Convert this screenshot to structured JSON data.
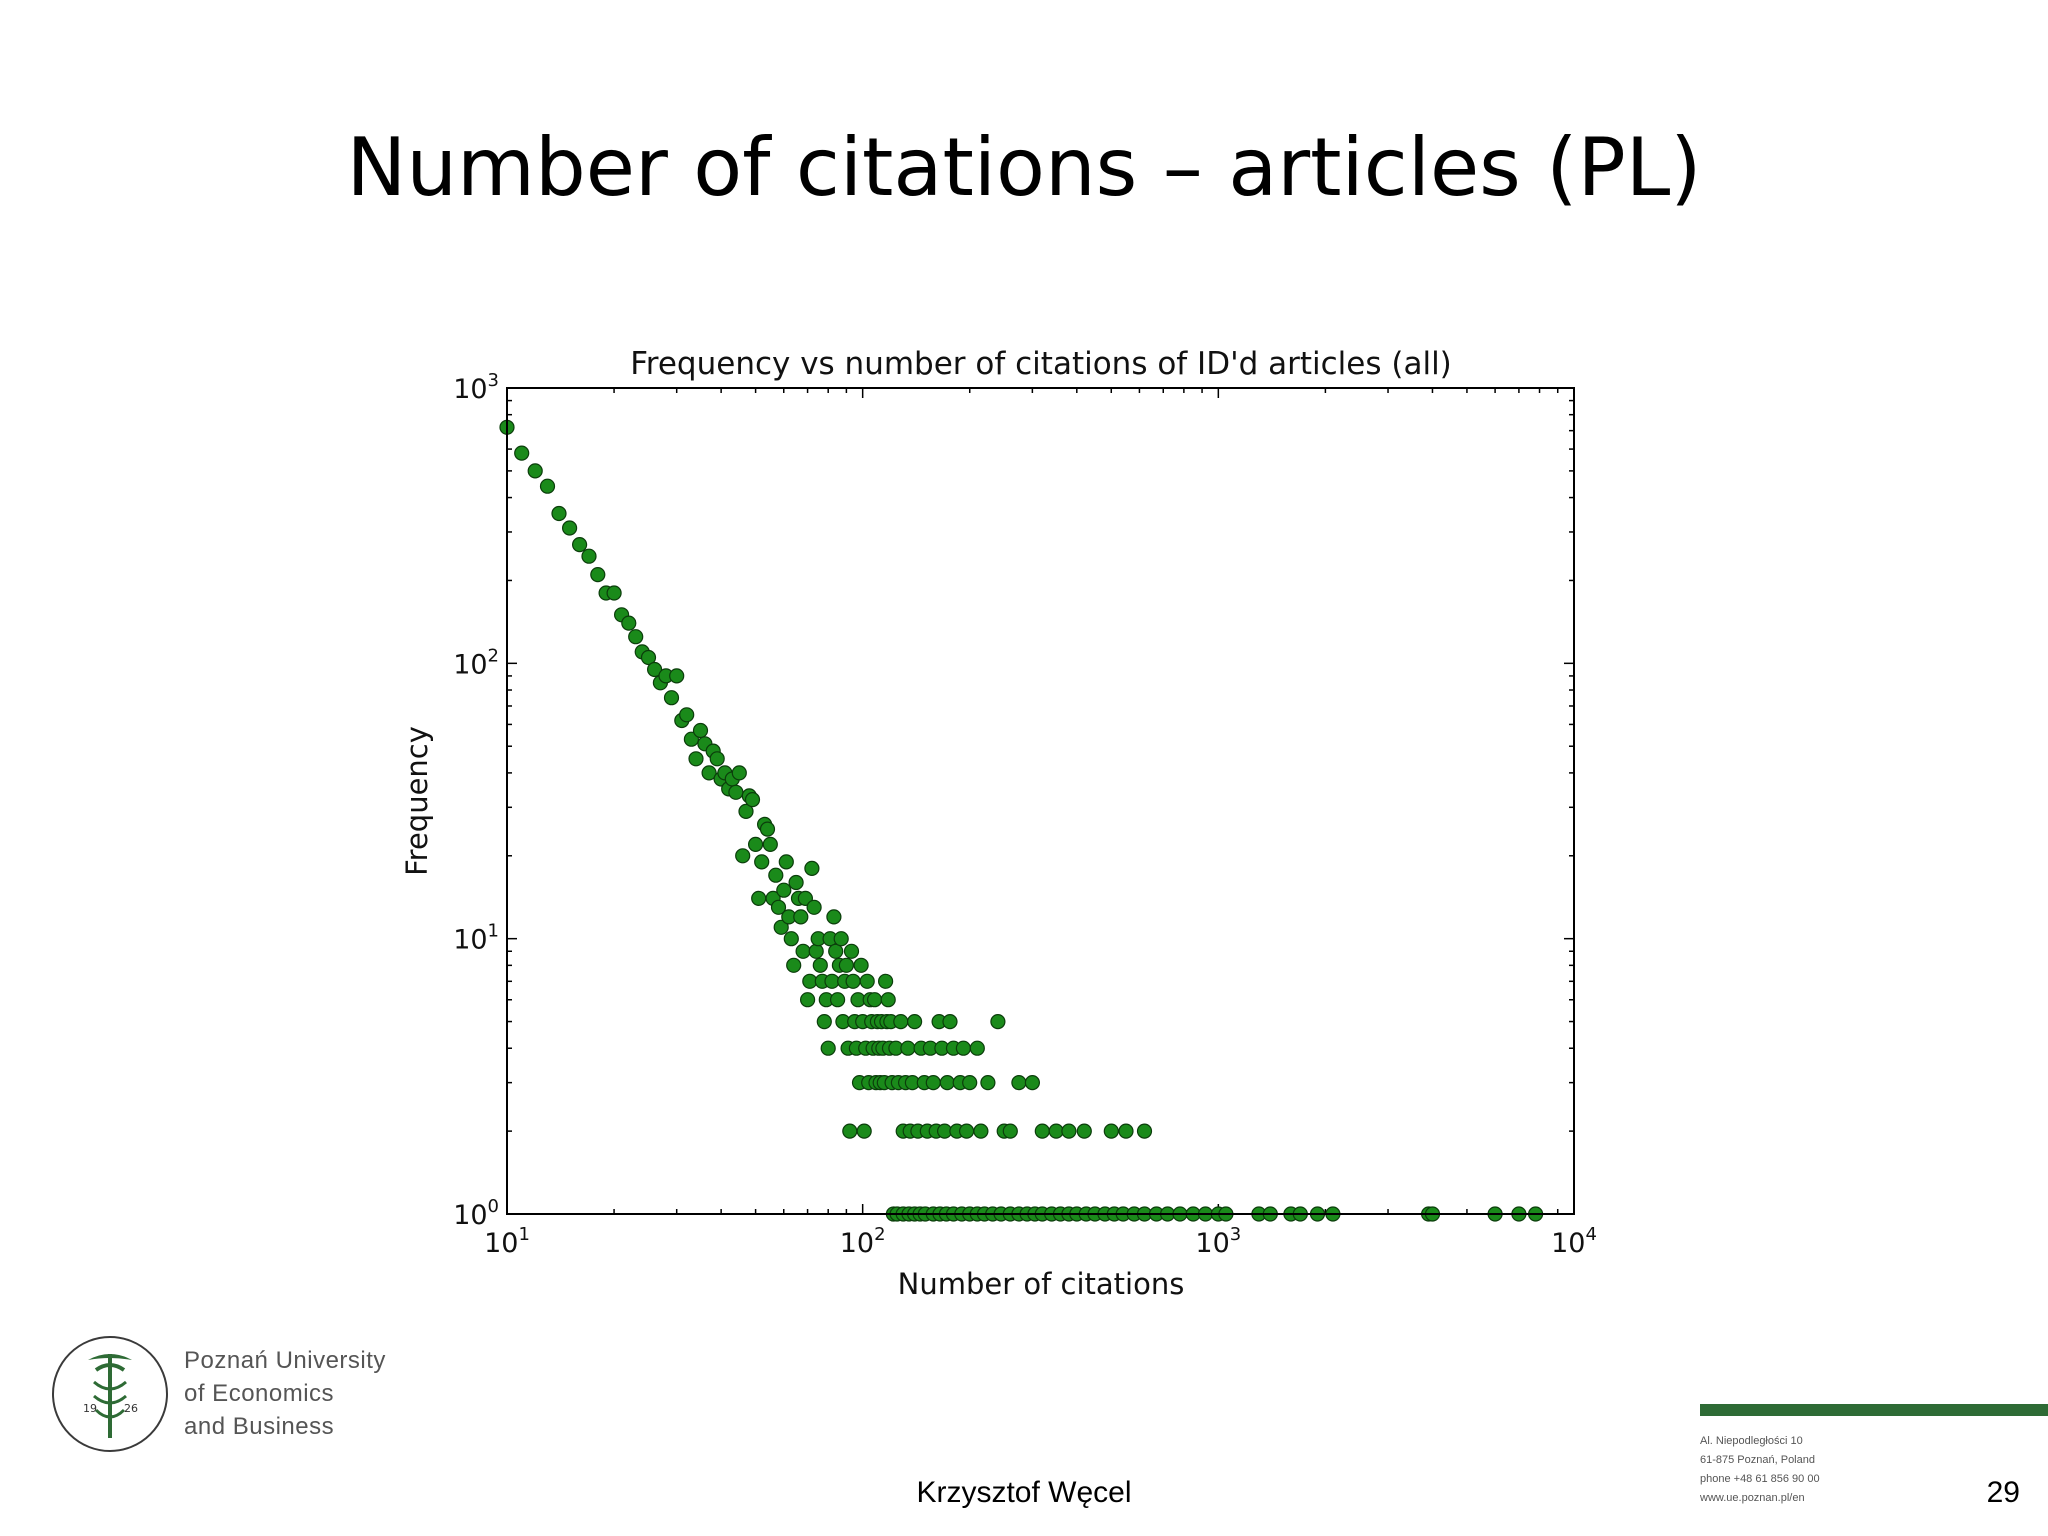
{
  "slide": {
    "title": "Number of citations – articles (PL)",
    "author": "Krzysztof Węcel",
    "page_number": "29"
  },
  "logo": {
    "line1": "Poznań University",
    "line2": "of Economics",
    "line3": "and Business",
    "seal_year_left": "19",
    "seal_year_right": "26"
  },
  "address": {
    "line1": "Al. Niepodległości 10",
    "line2": "61-875 Poznań, Poland",
    "line3": "phone +48 61 856 90 00",
    "line4": "www.ue.poznan.pl/en"
  },
  "colors": {
    "marker": "#1a8a1a",
    "marker_edge": "#0b3d0b",
    "accent": "#2e6b35"
  },
  "chart_data": {
    "type": "scatter",
    "title": "Frequency vs number of citations of ID'd articles (all)",
    "xlabel": "Number of citations",
    "ylabel": "Frequency",
    "xscale": "log",
    "yscale": "log",
    "xlim": [
      10,
      10000
    ],
    "ylim": [
      1,
      1000
    ],
    "xticks": [
      "10^1",
      "10^2",
      "10^3",
      "10^4"
    ],
    "yticks": [
      "10^0",
      "10^1",
      "10^2",
      "10^3"
    ],
    "grid": false,
    "series": [
      {
        "points": [
          [
            10,
            720
          ],
          [
            11,
            580
          ],
          [
            12,
            500
          ],
          [
            13,
            440
          ],
          [
            14,
            350
          ],
          [
            15,
            310
          ],
          [
            16,
            270
          ],
          [
            17,
            245
          ],
          [
            18,
            210
          ],
          [
            19,
            180
          ],
          [
            20,
            180
          ],
          [
            21,
            150
          ],
          [
            22,
            140
          ],
          [
            23,
            125
          ],
          [
            24,
            110
          ],
          [
            25,
            105
          ],
          [
            26,
            95
          ],
          [
            27,
            85
          ],
          [
            28,
            90
          ],
          [
            29,
            75
          ],
          [
            30,
            90
          ],
          [
            31,
            62
          ],
          [
            32,
            65
          ],
          [
            33,
            53
          ],
          [
            34,
            45
          ],
          [
            35,
            57
          ],
          [
            36,
            51
          ],
          [
            37,
            40
          ],
          [
            38,
            48
          ],
          [
            39,
            45
          ],
          [
            40,
            38
          ],
          [
            41,
            40
          ],
          [
            42,
            35
          ],
          [
            43,
            38
          ],
          [
            44,
            34
          ],
          [
            45,
            40
          ],
          [
            46,
            20
          ],
          [
            47,
            29
          ],
          [
            48,
            33
          ],
          [
            49,
            32
          ],
          [
            50,
            22
          ],
          [
            51,
            14
          ],
          [
            52,
            19
          ],
          [
            53,
            26
          ],
          [
            54,
            25
          ],
          [
            55,
            22
          ],
          [
            56,
            14
          ],
          [
            57,
            17
          ],
          [
            58,
            13
          ],
          [
            59,
            11
          ],
          [
            60,
            15
          ],
          [
            61,
            19
          ],
          [
            62,
            12
          ],
          [
            63,
            10
          ],
          [
            64,
            8
          ],
          [
            65,
            16
          ],
          [
            66,
            14
          ],
          [
            67,
            12
          ],
          [
            68,
            9
          ],
          [
            69,
            14
          ],
          [
            70,
            6
          ],
          [
            71,
            7
          ],
          [
            72,
            18
          ],
          [
            73,
            13
          ],
          [
            74,
            9
          ],
          [
            75,
            10
          ],
          [
            76,
            8
          ],
          [
            77,
            7
          ],
          [
            78,
            5
          ],
          [
            79,
            6
          ],
          [
            80,
            4
          ],
          [
            81,
            10
          ],
          [
            82,
            7
          ],
          [
            83,
            12
          ],
          [
            84,
            9
          ],
          [
            85,
            6
          ],
          [
            86,
            8
          ],
          [
            87,
            10
          ],
          [
            88,
            5
          ],
          [
            89,
            7
          ],
          [
            90,
            8
          ],
          [
            91,
            4
          ],
          [
            92,
            2
          ],
          [
            93,
            9
          ],
          [
            94,
            7
          ],
          [
            95,
            5
          ],
          [
            96,
            4
          ],
          [
            97,
            6
          ],
          [
            98,
            3
          ],
          [
            99,
            8
          ],
          [
            100,
            5
          ],
          [
            101,
            2
          ],
          [
            102,
            4
          ],
          [
            103,
            7
          ],
          [
            104,
            3
          ],
          [
            105,
            6
          ],
          [
            106,
            5
          ],
          [
            107,
            4
          ],
          [
            108,
            6
          ],
          [
            109,
            3
          ],
          [
            110,
            5
          ],
          [
            111,
            4
          ],
          [
            112,
            3
          ],
          [
            113,
            5
          ],
          [
            114,
            4
          ],
          [
            115,
            3
          ],
          [
            116,
            7
          ],
          [
            117,
            5
          ],
          [
            118,
            6
          ],
          [
            119,
            4
          ],
          [
            120,
            5
          ],
          [
            121,
            3
          ],
          [
            122,
            1
          ],
          [
            124,
            4
          ],
          [
            126,
            3
          ],
          [
            128,
            5
          ],
          [
            130,
            2
          ],
          [
            132,
            3
          ],
          [
            134,
            4
          ],
          [
            136,
            2
          ],
          [
            138,
            3
          ],
          [
            140,
            5
          ],
          [
            143,
            2
          ],
          [
            146,
            4
          ],
          [
            149,
            3
          ],
          [
            152,
            2
          ],
          [
            155,
            4
          ],
          [
            158,
            3
          ],
          [
            161,
            2
          ],
          [
            164,
            5
          ],
          [
            167,
            4
          ],
          [
            170,
            2
          ],
          [
            173,
            3
          ],
          [
            176,
            5
          ],
          [
            180,
            4
          ],
          [
            184,
            2
          ],
          [
            188,
            3
          ],
          [
            192,
            4
          ],
          [
            196,
            2
          ],
          [
            200,
            3
          ],
          [
            210,
            4
          ],
          [
            215,
            2
          ],
          [
            225,
            3
          ],
          [
            240,
            5
          ],
          [
            250,
            2
          ],
          [
            260,
            2
          ],
          [
            275,
            3
          ],
          [
            300,
            3
          ],
          [
            320,
            2
          ],
          [
            350,
            2
          ],
          [
            380,
            2
          ],
          [
            420,
            2
          ],
          [
            500,
            2
          ],
          [
            550,
            2
          ],
          [
            620,
            2
          ],
          [
            125,
            1
          ],
          [
            130,
            1
          ],
          [
            135,
            1
          ],
          [
            140,
            1
          ],
          [
            145,
            1
          ],
          [
            150,
            1
          ],
          [
            158,
            1
          ],
          [
            165,
            1
          ],
          [
            172,
            1
          ],
          [
            180,
            1
          ],
          [
            190,
            1
          ],
          [
            200,
            1
          ],
          [
            210,
            1
          ],
          [
            220,
            1
          ],
          [
            232,
            1
          ],
          [
            245,
            1
          ],
          [
            260,
            1
          ],
          [
            275,
            1
          ],
          [
            290,
            1
          ],
          [
            305,
            1
          ],
          [
            320,
            1
          ],
          [
            340,
            1
          ],
          [
            360,
            1
          ],
          [
            380,
            1
          ],
          [
            400,
            1
          ],
          [
            425,
            1
          ],
          [
            450,
            1
          ],
          [
            480,
            1
          ],
          [
            510,
            1
          ],
          [
            540,
            1
          ],
          [
            580,
            1
          ],
          [
            620,
            1
          ],
          [
            670,
            1
          ],
          [
            720,
            1
          ],
          [
            780,
            1
          ],
          [
            850,
            1
          ],
          [
            920,
            1
          ],
          [
            1000,
            1
          ],
          [
            1050,
            1
          ],
          [
            1300,
            1
          ],
          [
            1400,
            1
          ],
          [
            1600,
            1
          ],
          [
            1700,
            1
          ],
          [
            1900,
            1
          ],
          [
            2100,
            1
          ],
          [
            3900,
            1
          ],
          [
            4000,
            1
          ],
          [
            6000,
            1
          ],
          [
            7000,
            1
          ],
          [
            7800,
            1
          ]
        ]
      }
    ]
  }
}
